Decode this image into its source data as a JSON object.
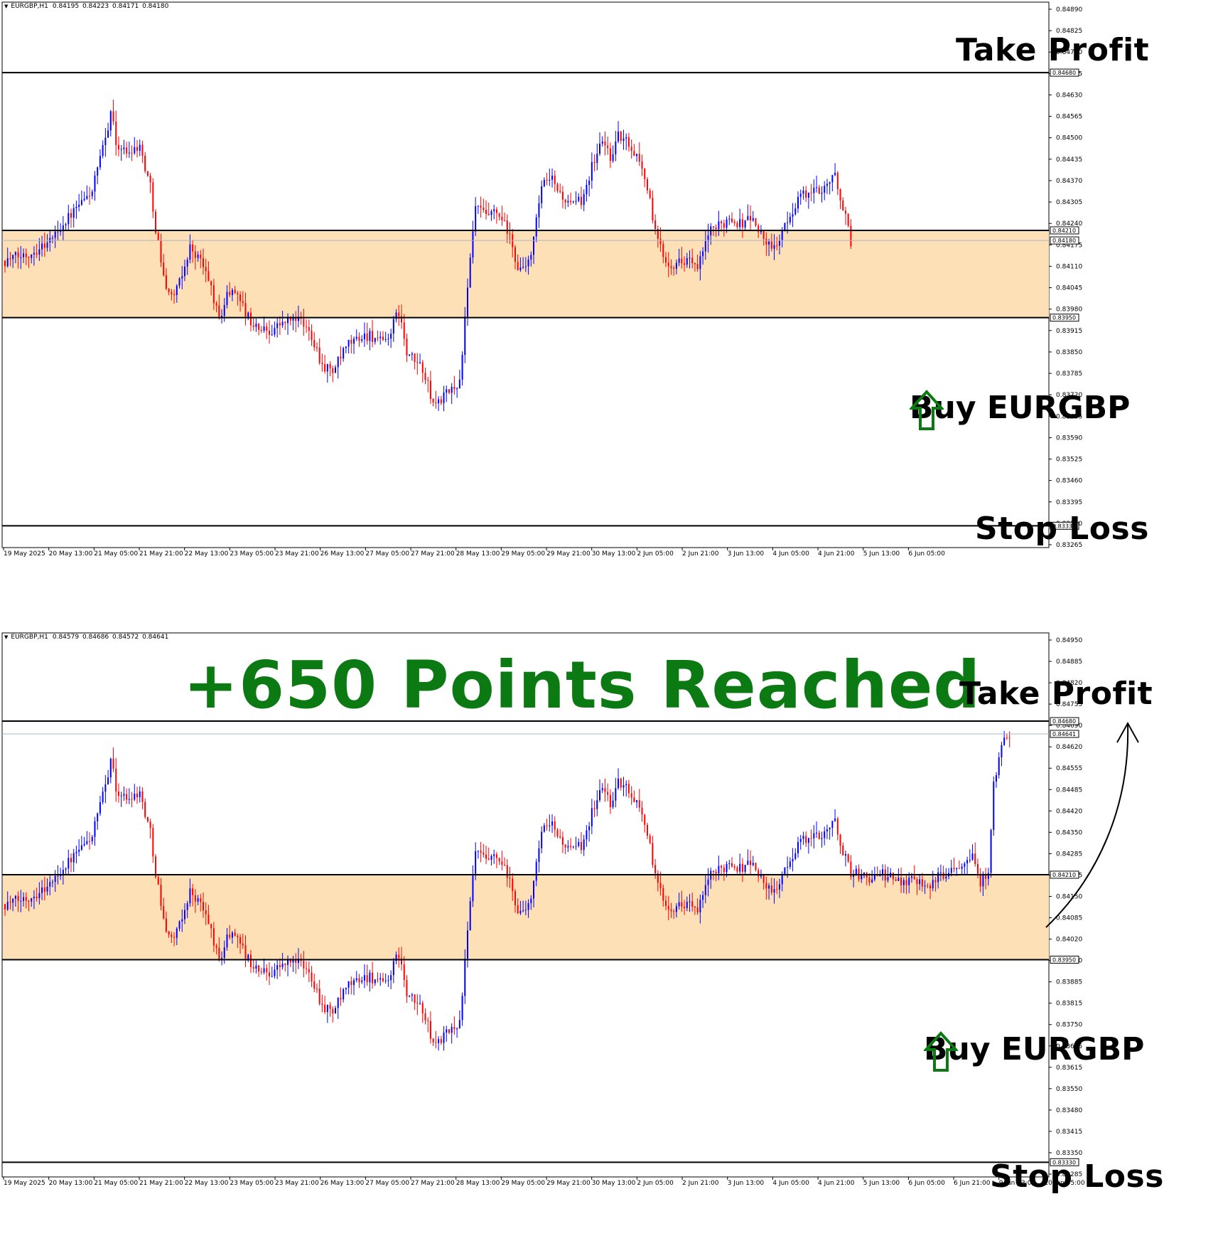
{
  "colors": {
    "bull_candle": "#0000ff",
    "bear_candle": "#ff0000",
    "zone_fill": "#fde0b6",
    "level_line": "#000000",
    "headline": "#0b7a12",
    "buy_arrow": "#0b7a12",
    "price_line": "#aab4c8"
  },
  "icons": {
    "buy_arrow": "up-arrow-icon",
    "target_arrow": "curved-arrow-icon"
  },
  "chart_data": [
    {
      "type": "candlestick",
      "symbol": "EURGBP,H1",
      "ohlc_header": "0.84195 0.84223 0.84171 0.84180",
      "ylim": [
        0.83265,
        0.8489
      ],
      "y_tick_labels": [
        "0.84890",
        "0.84825",
        "0.84760",
        "0.84695",
        "0.84630",
        "0.84565",
        "0.84500",
        "0.84435",
        "0.84370",
        "0.84305",
        "0.84240",
        "0.84175",
        "0.84110",
        "0.84045",
        "0.83980",
        "0.83915",
        "0.83850",
        "0.83785",
        "0.83720",
        "0.83655",
        "0.83590",
        "0.83525",
        "0.83460",
        "0.83395",
        "0.83330",
        "0.83265"
      ],
      "x_tick_labels": [
        "19 May 2025",
        "20 May 13:00",
        "21 May 05:00",
        "21 May 21:00",
        "22 May 13:00",
        "23 May 05:00",
        "23 May 21:00",
        "26 May 13:00",
        "27 May 05:00",
        "27 May 21:00",
        "28 May 13:00",
        "29 May 05:00",
        "29 May 21:00",
        "30 May 13:00",
        "2 Jun 05:00",
        "2 Jun 21:00",
        "3 Jun 13:00",
        "4 Jun 05:00",
        "4 Jun 21:00",
        "5 Jun 13:00",
        "6 Jun 05:00"
      ],
      "levels": {
        "take_profit": 0.8468,
        "zone_top": 0.8421,
        "zone_bottom": 0.8395,
        "stop_loss": 0.8333,
        "current_price": 0.8418
      },
      "level_tags": [
        "0.84680",
        "0.84210",
        "0.84180",
        "0.83950",
        "0.83330"
      ],
      "close_path": [
        [
          0,
          0.8412
        ],
        [
          9,
          0.8414
        ],
        [
          17,
          0.8418
        ],
        [
          23,
          0.8424
        ],
        [
          29,
          0.8429
        ],
        [
          33,
          0.8433
        ],
        [
          38,
          0.8448
        ],
        [
          40,
          0.8457
        ],
        [
          42,
          0.8447
        ],
        [
          46,
          0.8444
        ],
        [
          49,
          0.8446
        ],
        [
          51,
          0.8446
        ],
        [
          55,
          0.8434
        ],
        [
          57,
          0.8422
        ],
        [
          60,
          0.8407
        ],
        [
          63,
          0.8401
        ],
        [
          66,
          0.8405
        ],
        [
          70,
          0.8416
        ],
        [
          74,
          0.8412
        ],
        [
          78,
          0.8404
        ],
        [
          81,
          0.8394
        ],
        [
          84,
          0.8402
        ],
        [
          88,
          0.8403
        ],
        [
          91,
          0.8396
        ],
        [
          95,
          0.8392
        ],
        [
          100,
          0.8391
        ],
        [
          104,
          0.8393
        ],
        [
          110,
          0.8395
        ],
        [
          116,
          0.839
        ],
        [
          120,
          0.8381
        ],
        [
          124,
          0.8379
        ],
        [
          130,
          0.8387
        ],
        [
          134,
          0.8389
        ],
        [
          138,
          0.839
        ],
        [
          143,
          0.8387
        ],
        [
          146,
          0.8391
        ],
        [
          149,
          0.8397
        ],
        [
          152,
          0.8384
        ],
        [
          158,
          0.838
        ],
        [
          162,
          0.8369
        ],
        [
          167,
          0.8372
        ],
        [
          172,
          0.8376
        ],
        [
          174,
          0.8394
        ],
        [
          176,
          0.8412
        ],
        [
          178,
          0.8428
        ],
        [
          182,
          0.8425
        ],
        [
          186,
          0.8426
        ],
        [
          190,
          0.8421
        ],
        [
          194,
          0.841
        ],
        [
          197,
          0.8409
        ],
        [
          200,
          0.8418
        ],
        [
          203,
          0.8434
        ],
        [
          207,
          0.8436
        ],
        [
          210,
          0.8432
        ],
        [
          214,
          0.8428
        ],
        [
          218,
          0.843
        ],
        [
          222,
          0.844
        ],
        [
          226,
          0.8448
        ],
        [
          229,
          0.8443
        ],
        [
          232,
          0.8449
        ],
        [
          236,
          0.8447
        ],
        [
          240,
          0.8442
        ],
        [
          243,
          0.8434
        ],
        [
          246,
          0.842
        ],
        [
          250,
          0.8412
        ],
        [
          254,
          0.8411
        ],
        [
          258,
          0.8413
        ],
        [
          262,
          0.8409
        ],
        [
          266,
          0.842
        ],
        [
          270,
          0.8422
        ],
        [
          274,
          0.8425
        ],
        [
          278,
          0.8423
        ],
        [
          282,
          0.8425
        ],
        [
          286,
          0.842
        ],
        [
          290,
          0.8415
        ],
        [
          294,
          0.842
        ],
        [
          297,
          0.8425
        ],
        [
          300,
          0.8431
        ],
        [
          304,
          0.8432
        ],
        [
          308,
          0.8433
        ],
        [
          312,
          0.8436
        ],
        [
          314,
          0.8437
        ],
        [
          317,
          0.8428
        ],
        [
          320,
          0.8418
        ]
      ]
    },
    {
      "type": "candlestick",
      "symbol": "EURGBP,H1",
      "ohlc_header": "0.84579 0.84686 0.84572 0.84641",
      "ylim": [
        0.83285,
        0.8495
      ],
      "y_tick_labels": [
        "0.84950",
        "0.84885",
        "0.84820",
        "0.84755",
        "0.84690",
        "0.84620",
        "0.84555",
        "0.84485",
        "0.84420",
        "0.84350",
        "0.84285",
        "0.84215",
        "0.84150",
        "0.84085",
        "0.84020",
        "0.83950",
        "0.83885",
        "0.83815",
        "0.83750",
        "0.83685",
        "0.83615",
        "0.83550",
        "0.83480",
        "0.83415",
        "0.83350",
        "0.83285"
      ],
      "x_tick_labels": [
        "19 May 2025",
        "20 May 13:00",
        "21 May 05:00",
        "21 May 21:00",
        "22 May 13:00",
        "23 May 05:00",
        "23 May 21:00",
        "26 May 13:00",
        "27 May 05:00",
        "27 May 21:00",
        "28 May 13:00",
        "29 May 05:00",
        "29 May 21:00",
        "30 May 13:00",
        "2 Jun 05:00",
        "2 Jun 21:00",
        "3 Jun 13:00",
        "4 Jun 05:00",
        "4 Jun 21:00",
        "5 Jun 13:00",
        "6 Jun 05:00",
        "6 Jun 21:00",
        "9 Jun 13:00",
        "10 Jun 05:00"
      ],
      "levels": {
        "take_profit": 0.8468,
        "zone_top": 0.8421,
        "zone_bottom": 0.8395,
        "stop_loss": 0.8333,
        "current_price": 0.84641
      },
      "level_tags": [
        "0.84680",
        "0.84641",
        "0.84210",
        "0.83950",
        "0.83330"
      ],
      "close_path": [
        [
          0,
          0.8412
        ],
        [
          9,
          0.8414
        ],
        [
          17,
          0.8418
        ],
        [
          23,
          0.8424
        ],
        [
          29,
          0.8429
        ],
        [
          33,
          0.8433
        ],
        [
          38,
          0.8448
        ],
        [
          40,
          0.8457
        ],
        [
          42,
          0.8447
        ],
        [
          46,
          0.8444
        ],
        [
          49,
          0.8446
        ],
        [
          51,
          0.8446
        ],
        [
          55,
          0.8434
        ],
        [
          57,
          0.8422
        ],
        [
          60,
          0.8407
        ],
        [
          63,
          0.8401
        ],
        [
          66,
          0.8405
        ],
        [
          70,
          0.8416
        ],
        [
          74,
          0.8412
        ],
        [
          78,
          0.8404
        ],
        [
          81,
          0.8394
        ],
        [
          84,
          0.8402
        ],
        [
          88,
          0.8403
        ],
        [
          91,
          0.8396
        ],
        [
          95,
          0.8392
        ],
        [
          100,
          0.8391
        ],
        [
          104,
          0.8393
        ],
        [
          110,
          0.8395
        ],
        [
          116,
          0.839
        ],
        [
          120,
          0.8381
        ],
        [
          124,
          0.8379
        ],
        [
          130,
          0.8387
        ],
        [
          134,
          0.8389
        ],
        [
          138,
          0.839
        ],
        [
          143,
          0.8387
        ],
        [
          146,
          0.8391
        ],
        [
          149,
          0.8397
        ],
        [
          152,
          0.8384
        ],
        [
          158,
          0.838
        ],
        [
          162,
          0.8369
        ],
        [
          167,
          0.8372
        ],
        [
          172,
          0.8376
        ],
        [
          174,
          0.8394
        ],
        [
          176,
          0.8412
        ],
        [
          178,
          0.8428
        ],
        [
          182,
          0.8425
        ],
        [
          186,
          0.8426
        ],
        [
          190,
          0.8421
        ],
        [
          194,
          0.841
        ],
        [
          197,
          0.8409
        ],
        [
          200,
          0.8418
        ],
        [
          203,
          0.8434
        ],
        [
          207,
          0.8436
        ],
        [
          210,
          0.8432
        ],
        [
          214,
          0.8428
        ],
        [
          218,
          0.843
        ],
        [
          222,
          0.844
        ],
        [
          226,
          0.8448
        ],
        [
          229,
          0.8443
        ],
        [
          232,
          0.8449
        ],
        [
          236,
          0.8447
        ],
        [
          240,
          0.8442
        ],
        [
          243,
          0.8434
        ],
        [
          246,
          0.842
        ],
        [
          250,
          0.8412
        ],
        [
          254,
          0.8411
        ],
        [
          258,
          0.8413
        ],
        [
          262,
          0.8409
        ],
        [
          266,
          0.842
        ],
        [
          270,
          0.8422
        ],
        [
          274,
          0.8425
        ],
        [
          278,
          0.8423
        ],
        [
          282,
          0.8425
        ],
        [
          286,
          0.842
        ],
        [
          290,
          0.8415
        ],
        [
          294,
          0.842
        ],
        [
          297,
          0.8425
        ],
        [
          300,
          0.8431
        ],
        [
          304,
          0.8432
        ],
        [
          308,
          0.8433
        ],
        [
          312,
          0.8436
        ],
        [
          314,
          0.8437
        ],
        [
          317,
          0.8428
        ],
        [
          320,
          0.8422
        ],
        [
          326,
          0.842
        ],
        [
          332,
          0.8421
        ],
        [
          338,
          0.8419
        ],
        [
          344,
          0.842
        ],
        [
          350,
          0.8418
        ],
        [
          356,
          0.8422
        ],
        [
          362,
          0.8425
        ],
        [
          366,
          0.8428
        ],
        [
          369,
          0.8418
        ],
        [
          372,
          0.8423
        ],
        [
          374,
          0.8448
        ],
        [
          377,
          0.846
        ],
        [
          380,
          0.8464
        ]
      ]
    }
  ],
  "annotations": {
    "panel1": {
      "take_profit": "Take Profit",
      "buy": "Buy EURGBP",
      "stop_loss": "Stop Loss"
    },
    "panel2": {
      "headline": "+650 Points Reached",
      "take_profit": "Take Profit",
      "buy": "Buy EURGBP",
      "stop_loss": "Stop Loss"
    }
  }
}
